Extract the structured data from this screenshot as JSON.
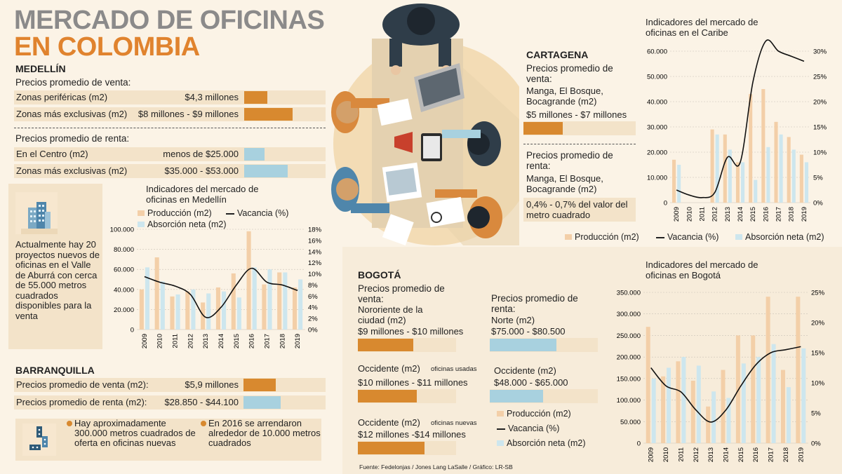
{
  "title": {
    "line1": "MERCADO DE OFICINAS",
    "line2": "EN COLOMBIA"
  },
  "colors": {
    "orange": "#d8892f",
    "blue": "#a8d1df",
    "prod": "#f3cfa8",
    "abs": "#cde6ee",
    "panel": "#f3e3c9"
  },
  "icons": [
    "building-icon",
    "dominoes-icon",
    "office-table-illustration",
    "bullet-dot-icon"
  ],
  "medellin": {
    "name": "MEDELLÍN",
    "sale_heading": "Precios promedio de venta:",
    "sale": [
      {
        "label": "Zonas periféricas (m2)",
        "value": "$4,3 millones",
        "level": 0.3
      },
      {
        "label": "Zonas más exclusivas (m2)",
        "value": "$8 millones - $9 millones",
        "level": 0.6
      }
    ],
    "rent_heading": "Precios promedio de renta:",
    "rent": [
      {
        "label": "En el Centro (m2)",
        "value": "menos de $25.000",
        "level": 0.25
      },
      {
        "label": "Zonas más exclusivas (m2)",
        "value": "$35.000 - $53.000",
        "level": 0.55
      }
    ],
    "note": "Actualmente hay 20 proyectos nuevos de oficinas en el Valle de Aburrá con cerca de 55.000 metros cuadrados disponibles para la venta"
  },
  "barranquilla": {
    "name": "BARRANQUILLA",
    "rows": [
      {
        "label": "Precios promedio de venta (m2):",
        "value": "$5,9 millones",
        "level": 0.4
      },
      {
        "label": "Precios promedio de renta (m2):",
        "value": "$28.850 - $44.100",
        "level": 0.45
      }
    ],
    "bullet1": "Hay aproximadamente 300.000 metros cuadrados de oferta en oficinas nuevas",
    "bullet2": "En  2016 se arrendaron alrededor de 10.000 metros cuadrados"
  },
  "cartagena": {
    "name": "CARTAGENA",
    "sale_heading": "Precios promedio de venta:",
    "sale_area": "Manga, El Bosque, Bocagrande (m2)",
    "sale_value": "$5 millones - $7 millones",
    "sale_level": 0.35,
    "rent_heading": "Precios promedio de renta:",
    "rent_area": "Manga, El Bosque, Bocagrande (m2)",
    "rent_value": "0,4% - 0,7% del valor del metro cuadrado"
  },
  "bogota": {
    "name": "BOGOTÁ",
    "sale_heading": "Precios promedio de venta:",
    "sale1_area": "Nororiente de la ciudad (m2)",
    "sale1_value": "$9 millones - $10 millones",
    "sale1_level": 0.56,
    "sale2_area": "Occidente (m2)",
    "sale2_note": "oficinas usadas",
    "sale2_value": "$10 millones - $11 millones",
    "sale2_level": 0.6,
    "sale3_area": "Occidente (m2)",
    "sale3_note": "oficinas nuevas",
    "sale3_value": "$12 millones -$14 millones",
    "sale3_level": 0.68,
    "rent_heading": "Precios promedio de renta:",
    "rent1_area": "Norte (m2)",
    "rent1_value": "$75.000 - $80.500",
    "rent1_level": 0.62,
    "rent2_area": "Occidente (m2)",
    "rent2_value": "$48.000 - $65.000",
    "rent2_level": 0.48
  },
  "source": "Fuente: Fedelonjas /  Jones Lang LaSalle / Gráfico: LR-SB",
  "legend": {
    "prod": "Producción (m2)",
    "vac": "Vacancia (%)",
    "abs": "Absorción neta (m2)"
  },
  "chart_data": [
    {
      "id": "medellin",
      "type": "bar",
      "title": "Indicadores del mercado de oficinas en Medellín",
      "categories": [
        "2009",
        "2010",
        "2011",
        "2012",
        "2013",
        "2014",
        "2015",
        "2016",
        "2017",
        "2018",
        "2019"
      ],
      "series": [
        {
          "name": "Producción (m2)",
          "type": "bar",
          "axis": "left",
          "values": [
            40000,
            72000,
            33000,
            38000,
            27000,
            42000,
            56000,
            98000,
            45000,
            57000,
            42000
          ]
        },
        {
          "name": "Absorción neta (m2)",
          "type": "bar",
          "axis": "left",
          "values": [
            62000,
            48000,
            35000,
            40000,
            36000,
            38000,
            32000,
            62000,
            60000,
            57000,
            50000
          ]
        },
        {
          "name": "Vacancia (%)",
          "type": "line",
          "axis": "right",
          "values": [
            9.5,
            8.5,
            7.8,
            6.3,
            2.2,
            4.0,
            8.0,
            11.0,
            8.5,
            8.0,
            7.0
          ]
        }
      ],
      "yticks_left": [
        "0",
        "20.000",
        "40.000",
        "60.000",
        "80.000",
        "100.000"
      ],
      "ylim_left": [
        0,
        100000
      ],
      "yticks_right": [
        "0%",
        "2%",
        "4%",
        "6%",
        "8%",
        "10%",
        "12%",
        "14%",
        "16%",
        "18%"
      ],
      "ylim_right": [
        0,
        18
      ]
    },
    {
      "id": "caribe",
      "type": "bar",
      "title": "Indicadores del mercado de oficinas en el Caribe",
      "categories": [
        "2009",
        "2010",
        "2011",
        "2012",
        "2013",
        "2014",
        "2015",
        "2016",
        "2017",
        "2018",
        "2019"
      ],
      "series": [
        {
          "name": "Producción (m2)",
          "type": "bar",
          "axis": "left",
          "values": [
            17000,
            0,
            0,
            29000,
            27000,
            16000,
            43000,
            45000,
            32000,
            26000,
            19000
          ]
        },
        {
          "name": "Absorción neta (m2)",
          "type": "bar",
          "axis": "left",
          "values": [
            15000,
            0,
            0,
            27000,
            21000,
            16000,
            9000,
            22000,
            27000,
            21000,
            16000
          ]
        },
        {
          "name": "Vacancia (%)",
          "type": "line",
          "axis": "right",
          "values": [
            2.5,
            1.5,
            1.0,
            2.0,
            9.0,
            8.0,
            24.0,
            32.0,
            30.0,
            29.0,
            28.0
          ]
        }
      ],
      "yticks_left": [
        "0",
        "10.000",
        "20.000",
        "30.000",
        "40.000",
        "50.000",
        "60.000"
      ],
      "ylim_left": [
        0,
        60000
      ],
      "yticks_right": [
        "0%",
        "5%",
        "10%",
        "15%",
        "20%",
        "25%",
        "30%"
      ],
      "ylim_right": [
        0,
        30
      ]
    },
    {
      "id": "bogota",
      "type": "bar",
      "title": "Indicadores del mercado de oficinas en Bogotá",
      "categories": [
        "2009",
        "2010",
        "2011",
        "2012",
        "2013",
        "2014",
        "2015",
        "2016",
        "2017",
        "2018",
        "2019"
      ],
      "series": [
        {
          "name": "Producción (m2)",
          "type": "bar",
          "axis": "left",
          "values": [
            270000,
            155000,
            190000,
            145000,
            85000,
            170000,
            250000,
            250000,
            340000,
            170000,
            340000
          ]
        },
        {
          "name": "Absorción neta (m2)",
          "type": "bar",
          "axis": "left",
          "values": [
            150000,
            175000,
            200000,
            180000,
            120000,
            105000,
            185000,
            200000,
            230000,
            130000,
            220000
          ]
        },
        {
          "name": "Vacancia (%)",
          "type": "line",
          "axis": "right",
          "values": [
            12.5,
            9.5,
            8.5,
            5.5,
            3.5,
            5.5,
            9.5,
            13.0,
            15.0,
            15.5,
            16.0
          ]
        }
      ],
      "yticks_left": [
        "0",
        "50.000",
        "100.000",
        "150.000",
        "200.000",
        "250.000",
        "300.000",
        "350.000"
      ],
      "ylim_left": [
        0,
        350000
      ],
      "yticks_right": [
        "0%",
        "5%",
        "10%",
        "15%",
        "20%",
        "25%"
      ],
      "ylim_right": [
        0,
        25
      ]
    }
  ]
}
